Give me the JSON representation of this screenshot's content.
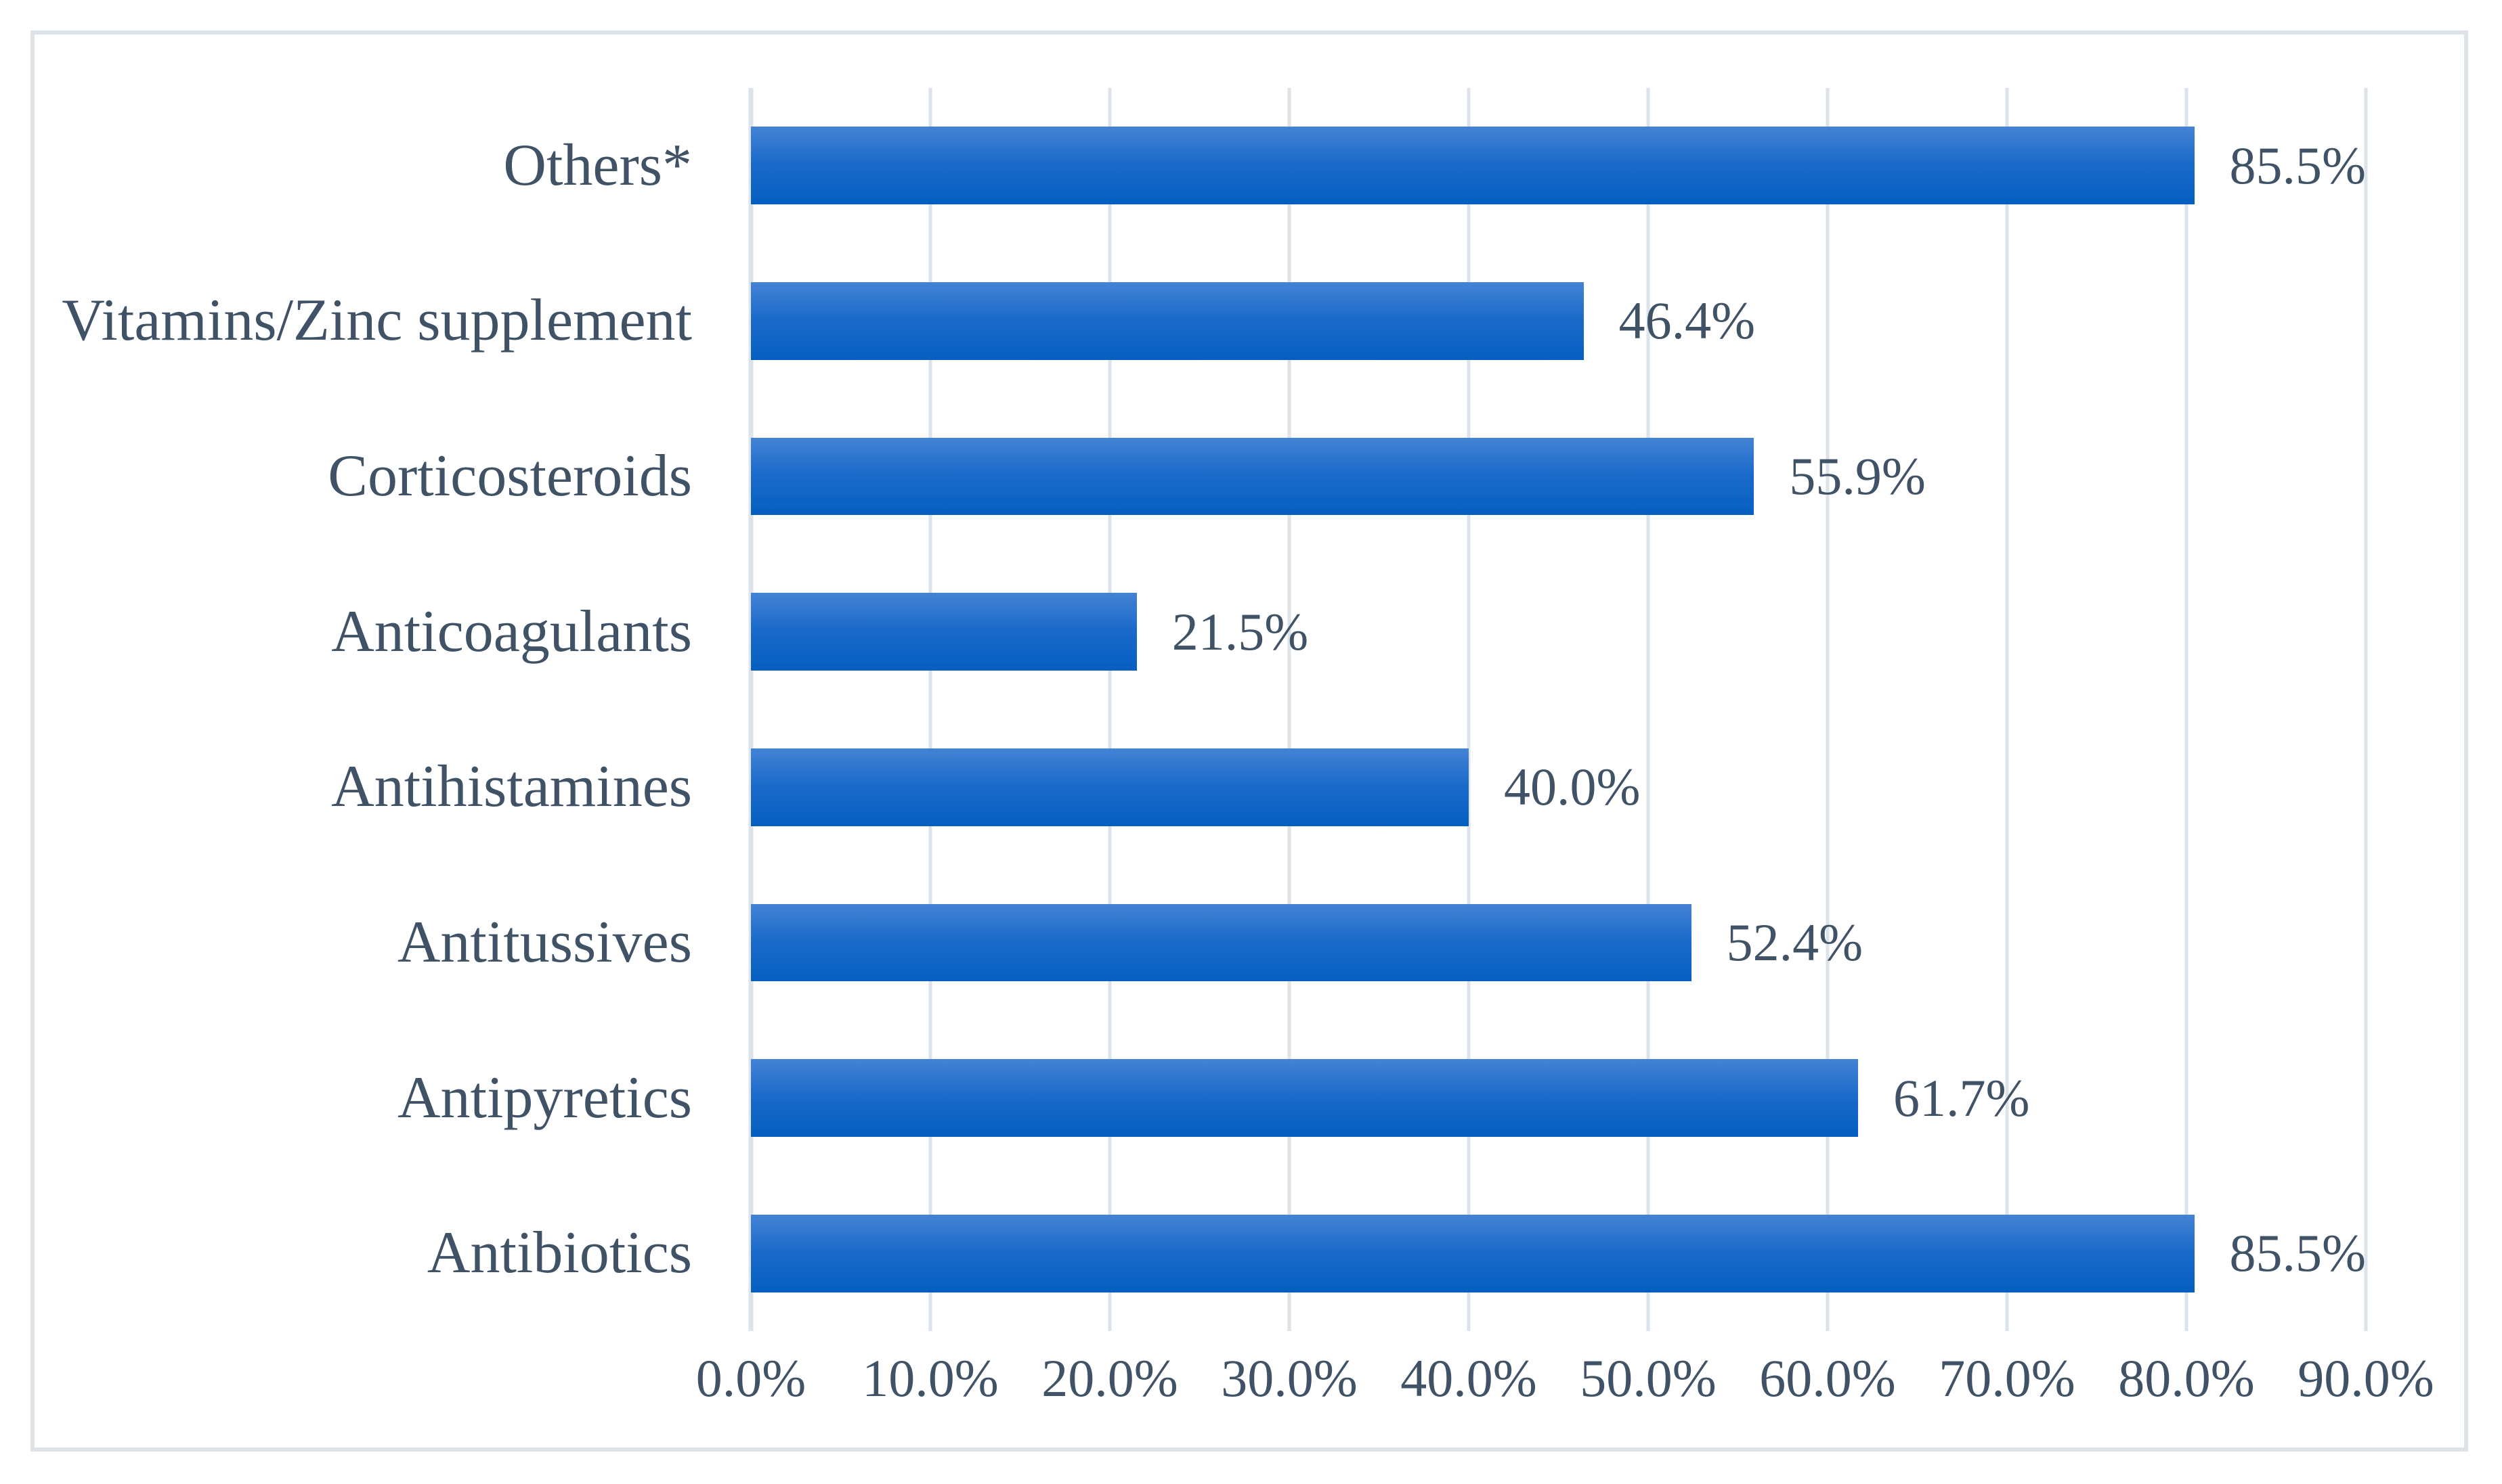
{
  "chart_data": {
    "type": "bar",
    "orientation": "horizontal",
    "title": "",
    "xlabel": "",
    "ylabel": "",
    "categories": [
      "Others*",
      "Vitamins/Zinc supplement",
      "Corticosteroids",
      "Anticoagulants",
      "Antihistamines",
      "Antitussives",
      "Antipyretics",
      "Antibiotics"
    ],
    "values": [
      85.5,
      46.4,
      55.9,
      21.5,
      40.0,
      52.4,
      61.7,
      85.5
    ],
    "value_labels": [
      "85.5%",
      "46.4%",
      "55.9%",
      "21.5%",
      "40.0%",
      "52.4%",
      "61.7%",
      "85.5%"
    ],
    "x_ticks": [
      0,
      10,
      20,
      30,
      40,
      50,
      60,
      70,
      80,
      90
    ],
    "x_tick_labels": [
      "0.0%",
      "10.0%",
      "20.0%",
      "30.0%",
      "40.0%",
      "50.0%",
      "60.0%",
      "70.0%",
      "80.0%",
      "90.0%"
    ],
    "xlim": [
      0,
      90
    ],
    "grid": true,
    "legend": null,
    "colors": {
      "bar_gradient_top": "#4483d4",
      "bar_gradient_mid": "#1a6aca",
      "bar_gradient_bottom": "#055fc0",
      "gridline": "#dce3ea",
      "text": "#3f5266",
      "figure_border": "#dee3e9",
      "background": "#ffffff"
    }
  }
}
